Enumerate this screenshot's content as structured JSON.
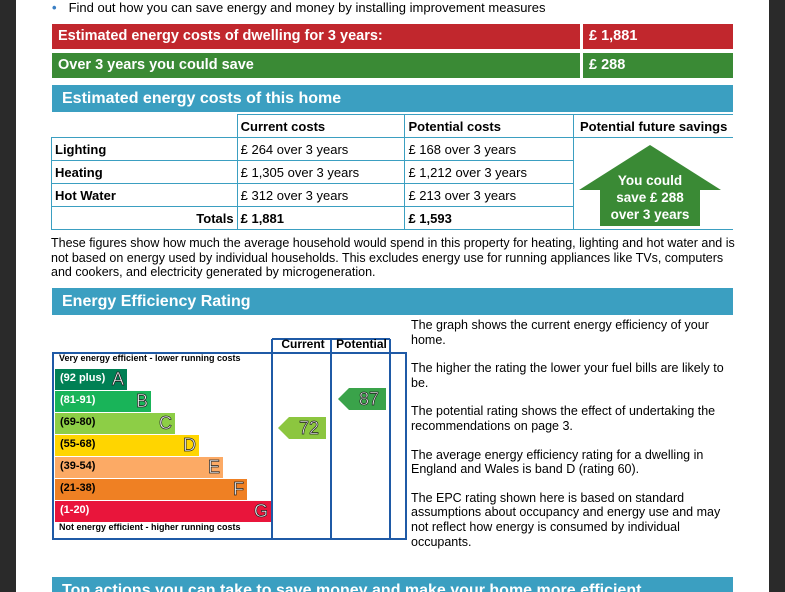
{
  "bullet_text": "Find out how you can save energy and money by installing improvement measures",
  "summary": {
    "estimated_label": "Estimated energy costs of dwelling for 3 years:",
    "estimated_value": "£ 1,881",
    "save_label": "Over 3 years you could save",
    "save_value": "£ 288"
  },
  "costs": {
    "heading": "Estimated energy costs of this home",
    "headers": [
      "Current costs",
      "Potential costs",
      "Potential future savings"
    ],
    "rows": [
      {
        "label": "Lighting",
        "current": "£ 264 over 3 years",
        "potential": "£ 168 over 3 years"
      },
      {
        "label": "Heating",
        "current": "£ 1,305 over 3 years",
        "potential": "£ 1,212 over 3 years"
      },
      {
        "label": "Hot Water",
        "current": "£ 312 over 3 years",
        "potential": "£ 213 over 3 years"
      }
    ],
    "totals": {
      "label": "Totals",
      "current": "£ 1,881",
      "potential": "£ 1,593"
    },
    "savings_lines": [
      "You could",
      "save £ 288",
      "over 3 years"
    ],
    "note": "These figures show how much the average household would spend in this property for heating, lighting and hot water and is not based on energy used by individual households. This excludes energy use for running appliances like TVs, computers and cookers, and electricity generated by microgeneration."
  },
  "efficiency": {
    "heading": "Energy Efficiency Rating",
    "col_current": "Current",
    "col_potential": "Potential",
    "top_caption": "Very energy efficient - lower running costs",
    "bottom_caption": "Not energy efficient - higher running costs",
    "bands": [
      {
        "range": "(92 plus)",
        "letter": "A",
        "color": "#008054"
      },
      {
        "range": "(81-91)",
        "letter": "B",
        "color": "#19b459"
      },
      {
        "range": "(69-80)",
        "letter": "C",
        "color": "#8dce46"
      },
      {
        "range": "(55-68)",
        "letter": "D",
        "color": "#ffd500"
      },
      {
        "range": "(39-54)",
        "letter": "E",
        "color": "#fcaa65"
      },
      {
        "range": "(21-38)",
        "letter": "F",
        "color": "#ef8023"
      },
      {
        "range": "(1-20)",
        "letter": "G",
        "color": "#e9153b"
      }
    ],
    "current_value": "72",
    "potential_value": "87",
    "paragraphs": [
      "The graph shows the current energy efficiency of your home.",
      "The higher the rating the lower your fuel bills are likely to be.",
      "The potential rating shows the effect of undertaking the recommendations on page 3.",
      "The average energy efficiency rating for a dwelling in England and Wales is band D (rating 60).",
      "The EPC rating shown here is based on standard assumptions about occupancy and energy use and may not reflect how energy is consumed by individual occupants."
    ]
  },
  "actions_heading": "Top actions you can take to save money and make your home more efficient"
}
